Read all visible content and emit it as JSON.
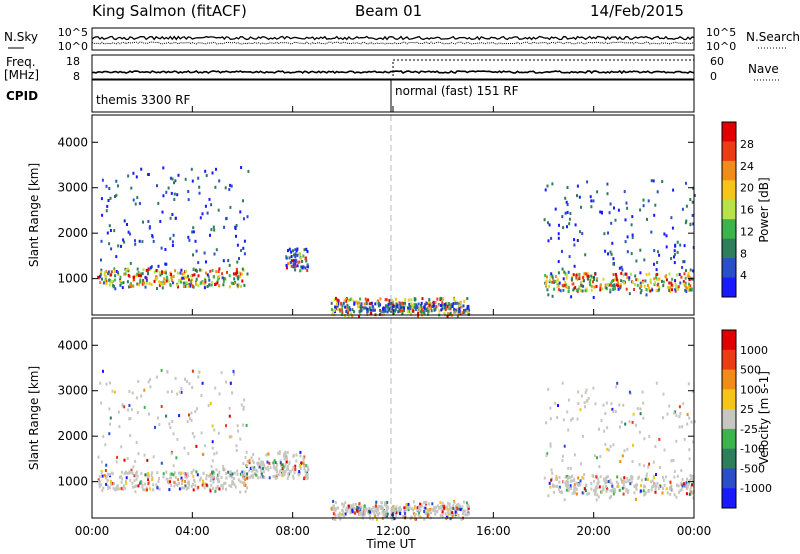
{
  "header": {
    "station": "King Salmon (fitACF)",
    "beam": "Beam 01",
    "date": "14/Feb/2015"
  },
  "summary": {
    "left_labels": [
      "N.Sky",
      "Freq.",
      "[MHz]",
      "CPID"
    ],
    "right_labels": [
      "N.Search",
      "Nave"
    ],
    "nsky_ticks": [
      "10^5",
      "10^0"
    ],
    "freq_ticks": [
      "18",
      "8"
    ],
    "nsearch_ticks": [
      "10^5",
      "10^0"
    ],
    "nave_ticks": [
      "60",
      "0"
    ],
    "cpid_segments": [
      {
        "label": "themis 3300 RF",
        "start_hour": 0
      },
      {
        "label": "normal (fast) 151 RF",
        "start_hour": 12
      }
    ]
  },
  "axes": {
    "ylabel": "Slant Range [km]",
    "xlabel": "Time UT",
    "x_ticks": [
      "00:00",
      "04:00",
      "08:00",
      "12:00",
      "16:00",
      "20:00",
      "00:00"
    ],
    "y_ticks": [
      "1000",
      "2000",
      "3000",
      "4000"
    ]
  },
  "colors": {
    "power_scale": [
      "#1a1aff",
      "#2a4fc8",
      "#2e7d5b",
      "#3cb44b",
      "#b7e34a",
      "#f5c518",
      "#f28c18",
      "#ee3b16",
      "#e00000"
    ],
    "velocity_scale": [
      "#1a1aff",
      "#2a4fc8",
      "#2e7d5b",
      "#3cb44b",
      "#c7c7c2",
      "#f5c518",
      "#f28c18",
      "#ee3b16",
      "#e00000"
    ]
  },
  "chart_data": [
    {
      "type": "heatmap",
      "panel": "power",
      "xlabel": "Time UT",
      "ylabel": "Slant Range [km]",
      "xlim": [
        0,
        24
      ],
      "ylim": [
        200,
        4600
      ],
      "colorbar": {
        "label": "Power [dB]",
        "ticks": [
          "28",
          "24",
          "20",
          "16",
          "12",
          "8",
          "4"
        ],
        "range": [
          0,
          32
        ]
      },
      "regions": [
        {
          "t0": 0.2,
          "t1": 6.2,
          "r0": 800,
          "r1": 3500,
          "peak_range": 1050,
          "value": 20
        },
        {
          "t0": 7.7,
          "t1": 8.6,
          "r0": 1200,
          "r1": 1700,
          "peak_range": 1400,
          "value": 12
        },
        {
          "t0": 9.5,
          "t1": 15.0,
          "r0": 300,
          "r1": 500,
          "peak_range": 400,
          "value": 6
        },
        {
          "t0": 18.0,
          "t1": 24.0,
          "r0": 600,
          "r1": 3200,
          "peak_range": 950,
          "value": 18
        }
      ]
    },
    {
      "type": "heatmap",
      "panel": "velocity",
      "xlabel": "Time UT",
      "ylabel": "Slant Range [km]",
      "xlim": [
        0,
        24
      ],
      "ylim": [
        200,
        4600
      ],
      "colorbar": {
        "label": "Velocity [m s-1]",
        "ticks": [
          "1000",
          "500",
          "100",
          "25",
          "-25",
          "-100",
          "-500",
          "-1000"
        ]
      },
      "regions": [
        {
          "t0": 0.2,
          "t1": 6.2,
          "r0": 800,
          "r1": 3500,
          "peak_range": 1050,
          "value": 0
        },
        {
          "t0": 6.0,
          "t1": 8.6,
          "r0": 1100,
          "r1": 1700,
          "peak_range": 1300,
          "value": -150
        },
        {
          "t0": 9.5,
          "t1": 15.0,
          "r0": 300,
          "r1": 500,
          "peak_range": 400,
          "value": 100
        },
        {
          "t0": 18.0,
          "t1": 24.0,
          "r0": 600,
          "r1": 3200,
          "peak_range": 950,
          "value": 0
        }
      ]
    }
  ]
}
